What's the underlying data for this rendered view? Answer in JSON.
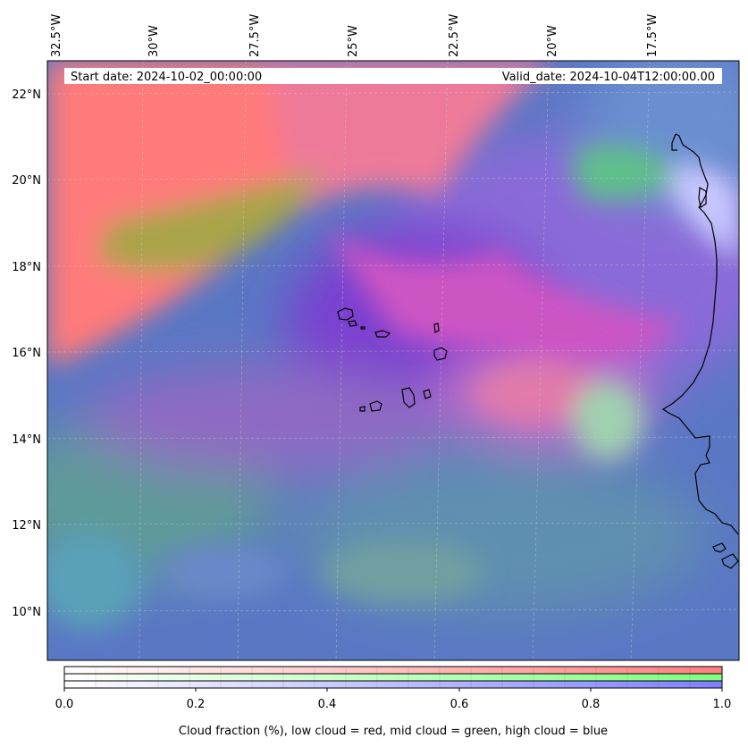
{
  "map": {
    "lon_ticks": [
      "32.5°W",
      "30°W",
      "27.5°W",
      "25°W",
      "22.5°W",
      "20°W",
      "17.5°W"
    ],
    "lat_ticks": [
      "22°N",
      "20°N",
      "18°N",
      "16°N",
      "14°N",
      "12°N",
      "10°N"
    ],
    "start_label": "Start date: 2024-10-02_00:00:00",
    "valid_label": "Valid_date: 2024-10-04T12:00:00.00",
    "features": [
      "Cabo Verde islands",
      "West African coastline"
    ]
  },
  "colorbar": {
    "ticks": [
      "0.0",
      "0.2",
      "0.4",
      "0.6",
      "0.8",
      "1.0"
    ],
    "label": "Cloud fraction (%), low cloud = red, mid cloud = green, high cloud = blue",
    "bands": [
      {
        "name": "low cloud",
        "color": "#ff7f7f"
      },
      {
        "name": "mid cloud",
        "color": "#7fff7f"
      },
      {
        "name": "high cloud",
        "color": "#7f7fff"
      }
    ]
  }
}
